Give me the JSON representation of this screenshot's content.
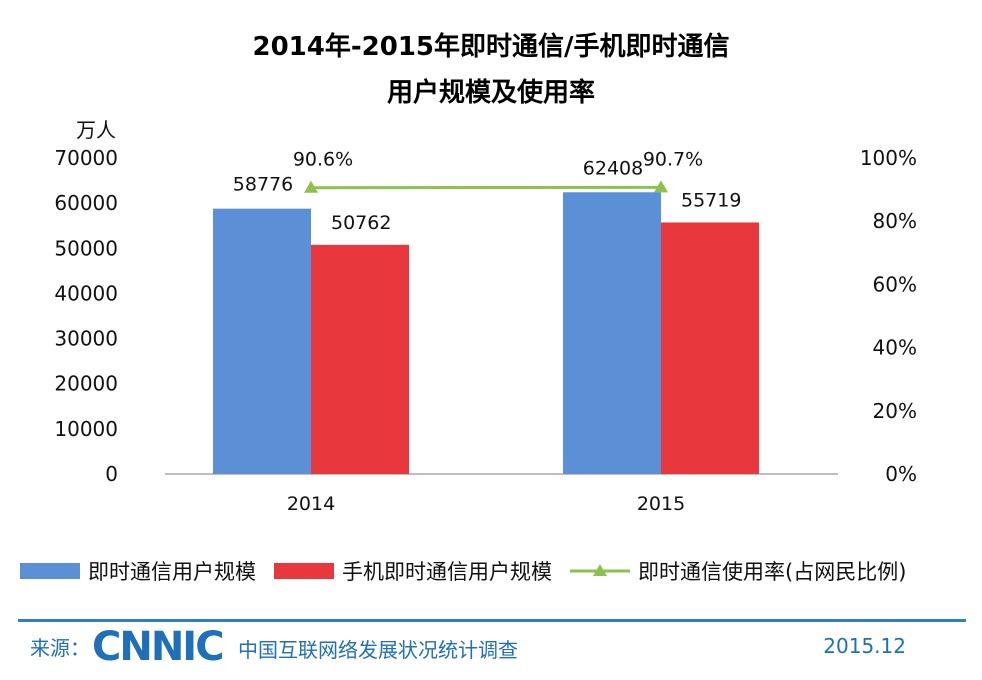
{
  "chart_data": {
    "type": "bar",
    "title": "2014年-2015年即时通信/手机即时通信",
    "subtitle": "用户规模及使用率",
    "y_unit": "万人",
    "categories": [
      "2014",
      "2015"
    ],
    "series": [
      {
        "name": "即时通信用户规模",
        "type": "bar",
        "axis": "left",
        "color": "#5b8fd6",
        "values": [
          58776,
          62408
        ]
      },
      {
        "name": "手机即时通信用户规模",
        "type": "bar",
        "axis": "left",
        "color": "#e8383d",
        "values": [
          50762,
          55719
        ]
      },
      {
        "name": "即时通信使用率(占网民比例)",
        "type": "line",
        "axis": "right",
        "color": "#8dc14b",
        "values": [
          0.906,
          0.907
        ],
        "labels": [
          "90.6%",
          "90.7%"
        ]
      }
    ],
    "y_left": {
      "min": 0,
      "max": 70000,
      "ticks": [
        "0",
        "10000",
        "20000",
        "30000",
        "40000",
        "50000",
        "60000",
        "70000"
      ]
    },
    "y_right": {
      "min": 0,
      "max": 1.0,
      "ticks": [
        "0%",
        "20%",
        "40%",
        "60%",
        "80%",
        "100%"
      ]
    },
    "legend_position": "bottom"
  },
  "footer": {
    "source_label": "来源：",
    "logo": "CNNIC",
    "survey": "中国互联网络发展状况统计调查",
    "date": "2015.12"
  }
}
